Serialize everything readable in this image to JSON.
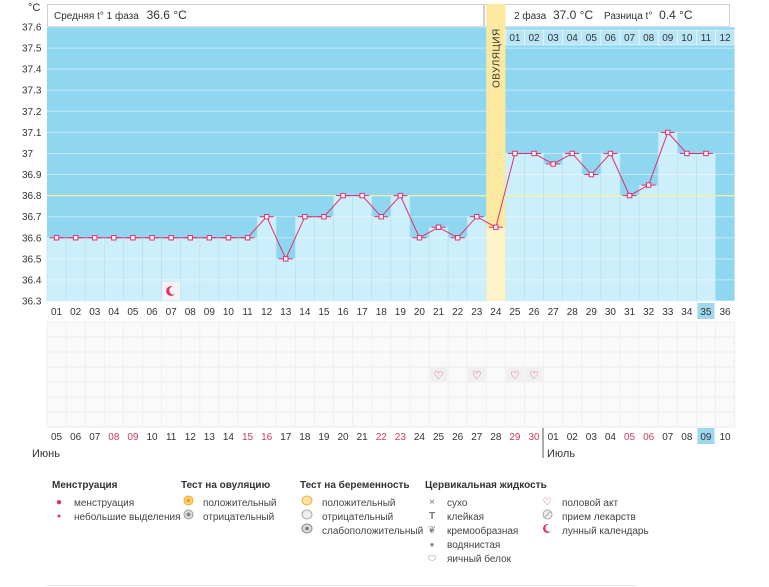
{
  "chart_data": {
    "type": "line",
    "unit_label": "°C",
    "phase1_caption": "Средняя t° 1 фаза",
    "phase1_avg": "36.6 °C",
    "phase2_caption": "2 фаза",
    "phase2_avg": "37.0 °C",
    "diff_caption": "Разница t°",
    "diff_value": "0.4 °C",
    "ovulation_label": "ОВУЛЯЦИЯ",
    "ovulation_day": 24,
    "coverline": 36.8,
    "ylim": [
      36.3,
      37.6
    ],
    "yticks": [
      36.3,
      36.4,
      36.5,
      36.6,
      36.7,
      36.8,
      36.9,
      37,
      37.1,
      37.2,
      37.3,
      37.4,
      37.5,
      37.6
    ],
    "ytick_labels": [
      "36.3",
      "36.4",
      "36.5",
      "36.6",
      "36.7",
      "36.8",
      "36.9",
      "37",
      "37.1",
      "37.2",
      "37.3",
      "37.4",
      "37.5",
      "37.6"
    ],
    "days": [
      "01",
      "02",
      "03",
      "04",
      "05",
      "06",
      "07",
      "08",
      "09",
      "10",
      "11",
      "12",
      "13",
      "14",
      "15",
      "16",
      "17",
      "18",
      "19",
      "20",
      "21",
      "22",
      "23",
      "24",
      "25",
      "26",
      "27",
      "28",
      "29",
      "30",
      "31",
      "32",
      "33",
      "34",
      "35",
      "36"
    ],
    "temperatures": [
      36.6,
      36.6,
      36.6,
      36.6,
      36.6,
      36.6,
      36.6,
      36.6,
      36.6,
      36.6,
      36.6,
      36.7,
      36.5,
      36.7,
      36.7,
      36.8,
      36.8,
      36.7,
      36.8,
      36.6,
      36.65,
      36.6,
      36.7,
      36.65,
      37.0,
      37.0,
      36.95,
      37.0,
      36.9,
      37.0,
      36.8,
      36.85,
      37.1,
      37.0,
      37.0,
      null
    ],
    "phase2_day_labels": [
      "01",
      "02",
      "03",
      "04",
      "05",
      "06",
      "07",
      "08",
      "09",
      "10",
      "11",
      "12"
    ],
    "dates": [
      "05",
      "06",
      "07",
      "08",
      "09",
      "10",
      "11",
      "12",
      "13",
      "14",
      "15",
      "16",
      "17",
      "18",
      "19",
      "20",
      "21",
      "22",
      "23",
      "24",
      "25",
      "26",
      "27",
      "28",
      "29",
      "30",
      "01",
      "02",
      "03",
      "04",
      "05",
      "06",
      "07",
      "08",
      "09",
      "10"
    ],
    "weekend_dates": [
      3,
      4,
      10,
      11,
      17,
      18,
      24,
      25,
      30,
      31
    ],
    "current_day_index": 34,
    "month_1": "Июнь",
    "month_2": "Июль",
    "month_2_start_index": 26,
    "moon_day_index": 6,
    "sex_day_indices": [
      20,
      22,
      24,
      25
    ]
  },
  "legend": {
    "menstruation": {
      "title": "Менструация",
      "items": [
        "менструация",
        "небольшие выделения"
      ]
    },
    "ovulation_test": {
      "title": "Тест на овуляцию",
      "items": [
        "положительный",
        "отрицательный"
      ]
    },
    "pregnancy_test": {
      "title": "Тест на беременность",
      "items": [
        "положительный",
        "отрицательный",
        "слабоположительный"
      ]
    },
    "cervical": {
      "title": "Цервикальная жидкость",
      "items": [
        "сухо",
        "клейкая",
        "кремообразная",
        "водянистая",
        "яичный белок"
      ]
    },
    "other": {
      "items": [
        "половой акт",
        "прием лекарств",
        "лунный календарь"
      ]
    }
  },
  "colors": {
    "sky": "#8fd7f0",
    "bar": "#cdeefb",
    "bar_edge": "#b2dff2",
    "line": "#e0306e",
    "ovulation": "#fde9a0",
    "weekend": "#d23a5a",
    "current": "#9ed8ee"
  }
}
